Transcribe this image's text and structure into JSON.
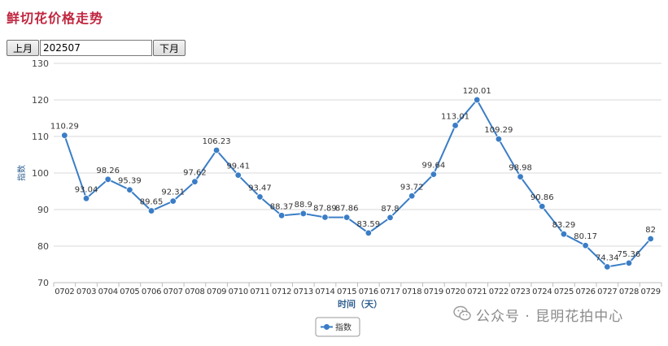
{
  "page_title": "鲜切花价格走势",
  "toolbar": {
    "prev_label": "上月",
    "next_label": "下月",
    "month_value": "202507"
  },
  "watermark": "公众号 · 昆明花拍中心",
  "colors": {
    "title": "#c0263f",
    "series": "#3a7dc6",
    "grid": "#d9d9d9"
  },
  "chart_data": {
    "type": "line",
    "title": "",
    "xlabel": "时间（天）",
    "ylabel": "指数",
    "ylim": [
      70,
      130
    ],
    "yticks": [
      "70",
      "80",
      "90",
      "100",
      "110",
      "120",
      "130"
    ],
    "grid": true,
    "legend": "bottom-center",
    "categories": [
      "0702",
      "0703",
      "0704",
      "0705",
      "0706",
      "0707",
      "0708",
      "0709",
      "0710",
      "0711",
      "0712",
      "0713",
      "0714",
      "0715",
      "0716",
      "0717",
      "0718",
      "0719",
      "0720",
      "0721",
      "0722",
      "0723",
      "0724",
      "0725",
      "0726",
      "0727",
      "0728",
      "0729"
    ],
    "series": [
      {
        "name": "指数",
        "values": [
          110.29,
          93.04,
          98.26,
          95.39,
          89.65,
          92.31,
          97.62,
          106.23,
          99.41,
          93.47,
          88.37,
          88.9,
          87.89,
          87.86,
          83.59,
          87.8,
          93.72,
          99.64,
          113.01,
          120.01,
          109.29,
          98.98,
          90.86,
          83.29,
          80.17,
          74.34,
          75.36,
          82
        ],
        "labels": [
          "110.29",
          "93.04",
          "98.26",
          "95.39",
          "89.65",
          "92.31",
          "97.62",
          "106.23",
          "99.41",
          "93.47",
          "88.37",
          "88.9",
          "87.89",
          "87.86",
          "83.59",
          "87.8",
          "93.72",
          "99.64",
          "113.01",
          "120.01",
          "109.29",
          "98.98",
          "90.86",
          "83.29",
          "80.17",
          "74.34",
          "75.36",
          "82"
        ]
      }
    ]
  }
}
